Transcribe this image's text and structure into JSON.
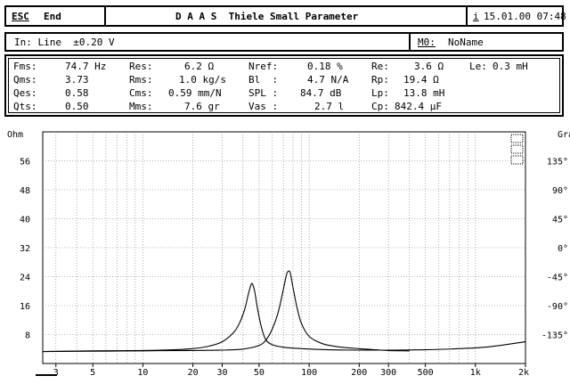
{
  "top_bar": {
    "esc_key": "ESC",
    "esc_label": "End",
    "title": "D A A S  Thiele Small Parameter",
    "info_key": "i",
    "datetime": "15.01.00 07:48"
  },
  "input_bar": {
    "input_label": "In: Line  ±0.20 V",
    "memory_key": "M0:",
    "memory_name": "NoName"
  },
  "params": {
    "fms_label": "Fms:",
    "fms_value": "74.7 Hz",
    "qms_label": "Qms:",
    "qms_value": "3.73",
    "qes_label": "Qes:",
    "qes_value": "0.58",
    "qts_label": "Qts:",
    "qts_value": "0.50",
    "res_label": "Res:",
    "res_value": "6.2 Ω",
    "rms_label": "Rms:",
    "rms_value": "1.0 kg/s",
    "cms_label": "Cms:",
    "cms_value": "0.59 mm/N",
    "mms_label": "Mms:",
    "mms_value": "7.6 gr",
    "nref_label": "Nref:",
    "nref_value": "0.18 %",
    "bl_label": "Bl  :",
    "bl_value": "4.7 N/A",
    "spl_label": "SPL :",
    "spl_value": "84.7 dB",
    "vas_label": "Vas :",
    "vas_value": "2.7 l",
    "re_label": "Re:",
    "re_value": "3.6 Ω",
    "rp_label": "Rp:",
    "rp_value": "19.4 Ω",
    "lp_label": "Lp:",
    "lp_value": "13.8 mH",
    "cp_label": "Cp:",
    "cp_value": "842.4 µF",
    "le_label": "Le:",
    "le_value": "0.3 mH"
  },
  "chart_data": {
    "type": "line",
    "x_scale": "log",
    "xlim": [
      2.5,
      2000
    ],
    "ylim": [
      0,
      64
    ],
    "y2lim": [
      -180,
      180
    ],
    "y_unit_label": "Ohm",
    "y2_unit_label": "Grad",
    "y_ticks": [
      "56",
      "48",
      "40",
      "32",
      "24",
      "16",
      "8"
    ],
    "y_tick_values": [
      56,
      48,
      40,
      32,
      24,
      16,
      8
    ],
    "y2_ticks": [
      "135°",
      "90°",
      "45°",
      "0°",
      "-45°",
      "-90°",
      "-135°"
    ],
    "y2_tick_values": [
      135,
      90,
      45,
      0,
      -45,
      -90,
      -135
    ],
    "x_ticks": [
      "3",
      "5",
      "10",
      "20",
      "30",
      "50",
      "100",
      "200",
      "300",
      "500",
      "1k",
      "2k"
    ],
    "x_tick_values": [
      3,
      5,
      10,
      20,
      30,
      50,
      100,
      200,
      300,
      500,
      1000,
      2000
    ],
    "grid": true,
    "series": [
      {
        "x": [
          2.5,
          5,
          10,
          15,
          20,
          25,
          30,
          35,
          38,
          41,
          43,
          44.5,
          45.5,
          47,
          49,
          52,
          55,
          60,
          70,
          90,
          130,
          200,
          300,
          500,
          800,
          1200,
          2000
        ],
        "y": [
          3.3,
          3.5,
          3.6,
          3.8,
          4.1,
          4.8,
          6.0,
          8.5,
          11.0,
          15.0,
          19.0,
          21.5,
          22.0,
          20.0,
          15.0,
          9.5,
          6.5,
          5.2,
          4.5,
          4.1,
          3.8,
          3.7,
          3.7,
          3.8,
          4.1,
          4.6,
          6.0
        ]
      },
      {
        "x": [
          2.5,
          5,
          10,
          20,
          30,
          40,
          50,
          55,
          60,
          65,
          70,
          73,
          75,
          77,
          80,
          85,
          90,
          100,
          120,
          150,
          200,
          250,
          300,
          400
        ],
        "y": [
          3.3,
          3.4,
          3.5,
          3.6,
          3.7,
          4.0,
          5.0,
          6.5,
          9.5,
          14.0,
          20.5,
          24.5,
          25.5,
          25.0,
          21.0,
          15.0,
          11.0,
          7.5,
          5.5,
          4.6,
          4.1,
          3.8,
          3.6,
          3.5
        ]
      }
    ]
  }
}
